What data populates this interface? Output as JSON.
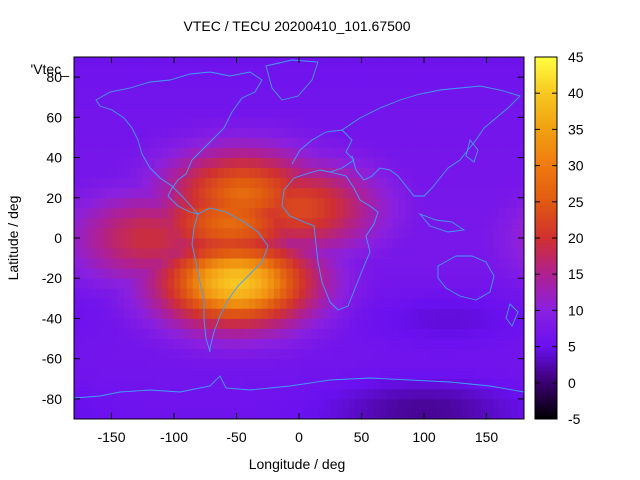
{
  "chart_data": {
    "type": "heatmap",
    "title": "VTEC / TECU 20200410_101.67500",
    "key_label": "'Vtec_",
    "xlabel": "Longitude / deg",
    "ylabel": "Latitude / deg",
    "xlim": [
      -180,
      180
    ],
    "ylim": [
      -90,
      90
    ],
    "xticks": [
      -150,
      -100,
      -50,
      0,
      50,
      100,
      150
    ],
    "yticks": [
      -80,
      -60,
      -40,
      -20,
      0,
      20,
      40,
      60,
      80
    ],
    "colorbar": {
      "range": [
        -5,
        45
      ],
      "ticks": [
        -5,
        0,
        5,
        10,
        15,
        20,
        25,
        30,
        35,
        40,
        45
      ],
      "palette": [
        "#000000",
        "#3a0070",
        "#6a10f0",
        "#8a20e0",
        "#b02090",
        "#d03030",
        "#e05a10",
        "#f09010",
        "#f8c020",
        "#ffff40"
      ]
    },
    "background_level": 7,
    "features": [
      {
        "label": "equatorial anomaly core",
        "lon": -55,
        "lat": 8,
        "peak": 30
      },
      {
        "label": "southern crest",
        "lon": -50,
        "lat": -22,
        "peak": 40
      },
      {
        "label": "northern crest",
        "lon": -45,
        "lat": 22,
        "peak": 30
      },
      {
        "label": "atlantic extension",
        "lon": 0,
        "lat": 15,
        "peak": 26
      },
      {
        "label": "pacific extension",
        "lon": -120,
        "lat": 0,
        "peak": 22
      }
    ],
    "lows": [
      {
        "label": "southern polar low",
        "lon": 100,
        "lat": -85,
        "value": 2
      },
      {
        "label": "south asia low",
        "lon": 120,
        "lat": -40,
        "value": 4
      }
    ],
    "overlay": "continent coastlines (light blue)"
  },
  "colors": {
    "coastline": "#3fa0ff",
    "axis": "#000000"
  }
}
